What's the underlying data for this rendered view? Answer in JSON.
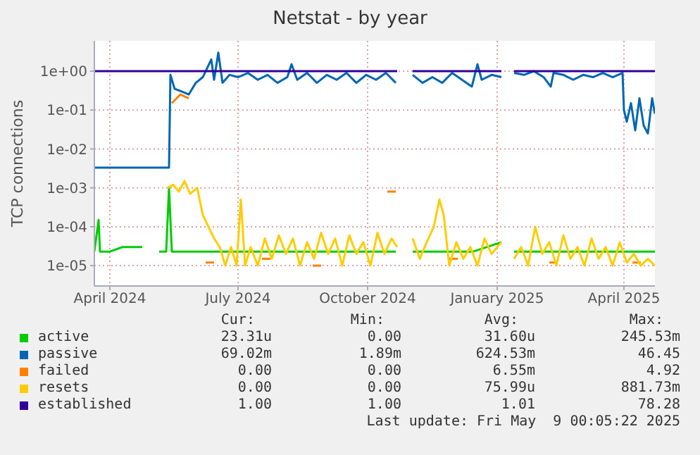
{
  "chart_data": {
    "type": "line",
    "title": "Netstat - by year",
    "ylabel": "TCP connections",
    "log": "y",
    "grid": true,
    "legend": "bottom",
    "marker": "none",
    "line_style": "solid",
    "xlim": [
      "2024-03-21",
      "2025-04-23"
    ],
    "xticks": [
      {
        "value": "2024-04-01",
        "label": "April 2024"
      },
      {
        "value": "2024-07-01",
        "label": "July 2024"
      },
      {
        "value": "2024-10-01",
        "label": "October 2024"
      },
      {
        "value": "2025-01-01",
        "label": "January 2025"
      },
      {
        "value": "2025-04-01",
        "label": "April 2025"
      }
    ],
    "ylim": [
      3e-06,
      6
    ],
    "yticks": [
      {
        "value": 1e-05,
        "label": "1e-05"
      },
      {
        "value": 0.0001,
        "label": "1e-04"
      },
      {
        "value": 0.001,
        "label": "1e-03"
      },
      {
        "value": 0.01,
        "label": "1e-02"
      },
      {
        "value": 0.1,
        "label": "1e-01"
      },
      {
        "value": 1,
        "label": "1e+00"
      }
    ],
    "series": [
      {
        "name": "active",
        "color": "#00cc00",
        "x": [
          "2024-03-21",
          "2024-03-24",
          "2024-03-25",
          "2024-04-01",
          "2024-04-10",
          "2024-04-17",
          "2024-04-24",
          "2024-05-02",
          "2024-05-06",
          "2024-05-11",
          "2024-05-13",
          "2024-05-15",
          "2024-06-15",
          "2024-07-15",
          "2024-08-15",
          "2024-09-15",
          "2024-10-21",
          "2024-10-27",
          "2024-11-02",
          "2024-12-15",
          "2025-01-04",
          "2025-01-08",
          "2025-01-13",
          "2025-02-15",
          "2025-03-15",
          "2025-04-23"
        ],
        "values": [
          2.3e-05,
          0.00015,
          2.3e-05,
          2.3e-05,
          3e-05,
          3e-05,
          3e-05,
          null,
          2.3e-05,
          2.3e-05,
          0.001,
          2.3e-05,
          2.3e-05,
          2.3e-05,
          2.3e-05,
          2.3e-05,
          2.3e-05,
          null,
          2.3e-05,
          2.3e-05,
          4e-05,
          null,
          2.3e-05,
          2.3e-05,
          2.3e-05,
          2.3e-05
        ]
      },
      {
        "name": "passive",
        "color": "#0066b3",
        "x": [
          "2024-03-21",
          "2024-04-10",
          "2024-05-01",
          "2024-05-13",
          "2024-05-14",
          "2024-05-17",
          "2024-05-22",
          "2024-05-27",
          "2024-06-01",
          "2024-06-06",
          "2024-06-12",
          "2024-06-14",
          "2024-06-17",
          "2024-06-20",
          "2024-06-25",
          "2024-07-01",
          "2024-07-08",
          "2024-07-15",
          "2024-07-22",
          "2024-07-29",
          "2024-08-05",
          "2024-08-08",
          "2024-08-12",
          "2024-08-19",
          "2024-08-26",
          "2024-09-02",
          "2024-09-09",
          "2024-09-16",
          "2024-09-23",
          "2024-09-30",
          "2024-10-07",
          "2024-10-14",
          "2024-10-21",
          "2024-10-27",
          "2024-11-02",
          "2024-11-09",
          "2024-11-16",
          "2024-11-23",
          "2024-11-30",
          "2024-12-07",
          "2024-12-14",
          "2024-12-18",
          "2024-12-21",
          "2024-12-28",
          "2025-01-04",
          "2025-01-08",
          "2025-01-13",
          "2025-01-20",
          "2025-01-27",
          "2025-02-03",
          "2025-02-08",
          "2025-02-10",
          "2025-02-17",
          "2025-02-24",
          "2025-03-03",
          "2025-03-10",
          "2025-03-17",
          "2025-03-24",
          "2025-03-31",
          "2025-04-01",
          "2025-04-03",
          "2025-04-06",
          "2025-04-09",
          "2025-04-12",
          "2025-04-15",
          "2025-04-18",
          "2025-04-21",
          "2025-04-23"
        ],
        "values": [
          0.0033,
          0.0033,
          0.0033,
          0.0033,
          0.8,
          0.35,
          0.3,
          0.25,
          0.5,
          0.7,
          2.0,
          0.6,
          3.0,
          0.5,
          0.8,
          0.7,
          0.9,
          0.6,
          0.8,
          0.5,
          0.7,
          1.5,
          0.6,
          0.9,
          0.5,
          0.8,
          0.6,
          0.9,
          0.5,
          0.8,
          0.6,
          0.9,
          0.5,
          null,
          0.8,
          0.5,
          0.7,
          0.5,
          0.9,
          0.6,
          0.4,
          1.5,
          0.6,
          0.8,
          0.7,
          null,
          0.9,
          0.8,
          1.0,
          0.7,
          0.4,
          0.9,
          0.8,
          0.6,
          0.8,
          0.7,
          0.9,
          0.7,
          0.9,
          0.1,
          0.05,
          0.15,
          0.03,
          0.2,
          0.04,
          0.025,
          0.2,
          0.08
        ]
      },
      {
        "name": "failed",
        "color": "#ff8000",
        "x": [
          "2024-05-15",
          "2024-05-21",
          "2024-05-27",
          "2024-06-01",
          "2024-06-08",
          "2024-06-14",
          "2024-06-18",
          "2024-07-18",
          "2024-07-24",
          "2024-07-28",
          "2024-08-23",
          "2024-08-29",
          "2024-09-02",
          "2024-10-15",
          "2024-10-21",
          "2024-10-25",
          "2024-11-28",
          "2024-12-04",
          "2024-12-08",
          "2025-02-07",
          "2025-02-13",
          "2025-02-17",
          "2025-04-07",
          "2025-04-13"
        ],
        "values": [
          0.15,
          0.25,
          0.2,
          null,
          1.2e-05,
          1.2e-05,
          null,
          1.5e-05,
          1.5e-05,
          null,
          1e-05,
          1e-05,
          null,
          0.0008,
          0.0008,
          null,
          1.5e-05,
          1.5e-05,
          null,
          1.2e-05,
          1.2e-05,
          null,
          1.2e-05,
          1.2e-05
        ]
      },
      {
        "name": "resets",
        "color": "#ffcc00",
        "x": [
          "2024-05-12",
          "2024-05-16",
          "2024-05-20",
          "2024-05-24",
          "2024-05-28",
          "2024-06-02",
          "2024-06-06",
          "2024-06-10",
          "2024-06-14",
          "2024-06-18",
          "2024-06-22",
          "2024-06-26",
          "2024-06-30",
          "2024-07-03",
          "2024-07-06",
          "2024-07-10",
          "2024-07-15",
          "2024-07-20",
          "2024-07-25",
          "2024-07-30",
          "2024-08-04",
          "2024-08-09",
          "2024-08-14",
          "2024-08-19",
          "2024-08-24",
          "2024-08-29",
          "2024-09-03",
          "2024-09-08",
          "2024-09-13",
          "2024-09-18",
          "2024-09-23",
          "2024-09-28",
          "2024-10-03",
          "2024-10-08",
          "2024-10-13",
          "2024-10-18",
          "2024-10-22",
          "2024-10-27",
          "2024-11-02",
          "2024-11-07",
          "2024-11-12",
          "2024-11-17",
          "2024-11-21",
          "2024-11-24",
          "2024-11-28",
          "2024-12-03",
          "2024-12-08",
          "2024-12-13",
          "2024-12-18",
          "2024-12-23",
          "2024-12-28",
          "2025-01-04",
          "2025-01-08",
          "2025-01-13",
          "2025-01-18",
          "2025-01-23",
          "2025-01-28",
          "2025-02-02",
          "2025-02-07",
          "2025-02-12",
          "2025-02-17",
          "2025-02-22",
          "2025-02-27",
          "2025-03-04",
          "2025-03-09",
          "2025-03-14",
          "2025-03-19",
          "2025-03-24",
          "2025-03-29",
          "2025-04-03",
          "2025-04-08",
          "2025-04-13",
          "2025-04-18",
          "2025-04-23"
        ],
        "values": [
          0.001,
          0.0012,
          0.0008,
          0.0015,
          0.0007,
          0.001,
          0.0002,
          0.0001,
          5e-05,
          3e-05,
          1e-05,
          3e-05,
          1e-05,
          0.0005,
          1e-05,
          3e-05,
          1e-05,
          5e-05,
          1.5e-05,
          6e-05,
          2e-05,
          5e-05,
          1e-05,
          4e-05,
          1.5e-05,
          7e-05,
          2e-05,
          5e-05,
          1e-05,
          6e-05,
          2e-05,
          4e-05,
          1e-05,
          7e-05,
          2e-05,
          5e-05,
          3e-05,
          null,
          5e-05,
          1.5e-05,
          4e-05,
          0.0001,
          0.0005,
          0.0002,
          1e-05,
          4e-05,
          1.5e-05,
          3e-05,
          1e-05,
          5e-05,
          2e-05,
          4e-05,
          null,
          1.5e-05,
          3e-05,
          1e-05,
          0.0001,
          2e-05,
          4e-05,
          1e-05,
          6e-05,
          1.5e-05,
          3e-05,
          1e-05,
          5e-05,
          1.5e-05,
          3e-05,
          1e-05,
          4e-05,
          1.2e-05,
          2e-05,
          1e-05,
          1.5e-05,
          1e-05
        ]
      },
      {
        "name": "established",
        "color": "#330099",
        "x": [
          "2024-03-21",
          "2024-04-10",
          "2024-05-01",
          "2024-05-14",
          "2024-06-01",
          "2024-07-01",
          "2024-08-01",
          "2024-09-01",
          "2024-10-01",
          "2024-10-22",
          "2024-10-27",
          "2024-11-02",
          "2024-12-01",
          "2025-01-04",
          "2025-01-08",
          "2025-01-13",
          "2025-02-01",
          "2025-03-01",
          "2025-04-01",
          "2025-04-23"
        ],
        "values": [
          1,
          1,
          1,
          1,
          1,
          1,
          1,
          1,
          1,
          1,
          null,
          1,
          1,
          1,
          null,
          1,
          1,
          1,
          1,
          1
        ]
      }
    ],
    "annotations": [
      "Cur:",
      "Min:",
      "Avg:",
      "Max:",
      "23.31u",
      "0.00",
      "31.60u",
      "245.53m",
      "69.02m",
      "1.89m",
      "624.53m",
      "46.45",
      "0.00",
      "0.00",
      "6.55m",
      "4.92",
      "0.00",
      "0.00",
      "75.99u",
      "881.73m",
      "1.00",
      "1.00",
      "1.01",
      "78.28",
      "Last update: Fri May  9 00:05:22 2025"
    ]
  }
}
